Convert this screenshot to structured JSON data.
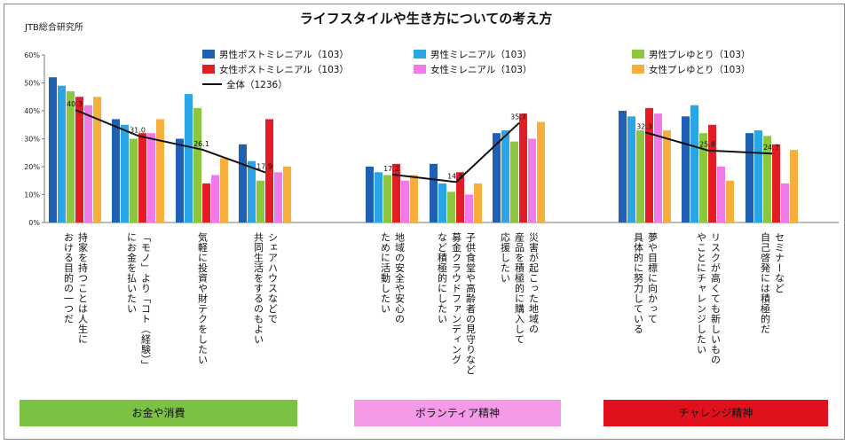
{
  "source_label": "JTB総合研究所",
  "chart_data": {
    "type": "bar",
    "title": "ライフスタイルや生き方についての考え方",
    "ylim": [
      0,
      60
    ],
    "y_ticks": [
      "0%",
      "10%",
      "20%",
      "30%",
      "40%",
      "50%",
      "60%"
    ],
    "grid": false,
    "legend_position": "top",
    "categories": [
      "持家を持つことは人生における目的の一つだ",
      "「モノ」より「コト（経験）」にお金を払いたい",
      "気軽に投資や財テクをしたい",
      "シェアハウスなどで共同生活をするのもよい",
      "地域の安全や安心のために活動したい",
      "子供食堂や高齢者の見守りなど募金クラウドファンディングなど積極的にしたい",
      "災害が起こった地域の産品を積極的に購入して応援したい",
      "夢や目標に向かって具体的に努力している",
      "リスクが高くても新しいものやことにチャレンジしたい",
      "セミナーなど自己啓発には積極的だ"
    ],
    "category_labels": [
      [
        "持家を持つことは人生に",
        "おける目的の一つだ"
      ],
      [
        "「モノ」より「コト（経験）」",
        "にお金を払いたい"
      ],
      [
        "気軽に投資や財テクをしたい"
      ],
      [
        "シェアハウスなどで",
        "共同生活をするのもよい"
      ],
      [
        "地域の安全や安心の",
        "ために活動したい"
      ],
      [
        "子供食堂や高齢者の見守りなど",
        "募金クラウドファンディング",
        "など積極的にしたい"
      ],
      [
        "災害が起こった地域の",
        "産品を積極的に購入して",
        "応援したい"
      ],
      [
        "夢や目標に向かって",
        "具体的に努力している"
      ],
      [
        "リスクが高くても新しいもの",
        "やことにチャレンジしたい"
      ],
      [
        "セミナーなど",
        "自己啓発には積極的だ"
      ]
    ],
    "series": [
      {
        "name": "男性ポストミレニアル（103）",
        "color": "#1f5fb4",
        "values": [
          52,
          37,
          30,
          28,
          20,
          21,
          32,
          40,
          38,
          32
        ]
      },
      {
        "name": "男性ミレニアル（103）",
        "color": "#2aa6e6",
        "values": [
          49,
          35,
          46,
          22,
          18,
          14,
          33,
          38,
          42,
          33
        ]
      },
      {
        "name": "男性プレゆとり（103）",
        "color": "#8cc63f",
        "values": [
          47,
          30,
          41,
          15,
          17,
          11,
          29,
          33,
          32,
          31
        ]
      },
      {
        "name": "女性ポストミレニアル（103）",
        "color": "#e21d26",
        "values": [
          45,
          32,
          14,
          37,
          21,
          18,
          39,
          41,
          35,
          28
        ]
      },
      {
        "name": "女性ミレニアル（103）",
        "color": "#f07ae8",
        "values": [
          42,
          32,
          17,
          18,
          15,
          10,
          30,
          39,
          20,
          14
        ]
      },
      {
        "name": "女性プレゆとり（103）",
        "color": "#f7ae3b",
        "values": [
          45,
          37,
          23,
          20,
          17,
          14,
          36,
          33,
          15,
          26
        ]
      }
    ],
    "overall": {
      "name": "全体（1236）",
      "color": "#111111",
      "values": [
        40.3,
        31.0,
        26.1,
        17.9,
        17.2,
        14.5,
        35.7,
        32.3,
        25.8,
        24.7
      ],
      "labels": [
        "40.3",
        "31.0",
        "26.1",
        "17.9",
        "17.2",
        "14.5",
        "35.7",
        "32.3",
        "25.8",
        "24.7"
      ]
    },
    "groups": [
      {
        "label": "お金や消費",
        "color": "#7bc142",
        "categories": [
          0,
          1,
          2,
          3
        ]
      },
      {
        "label": "ボランティア精神",
        "color": "#f59ae8",
        "categories": [
          4,
          5,
          6
        ]
      },
      {
        "label": "チャレンジ精神",
        "color": "#e0101c",
        "categories": [
          7,
          8,
          9
        ]
      }
    ]
  }
}
